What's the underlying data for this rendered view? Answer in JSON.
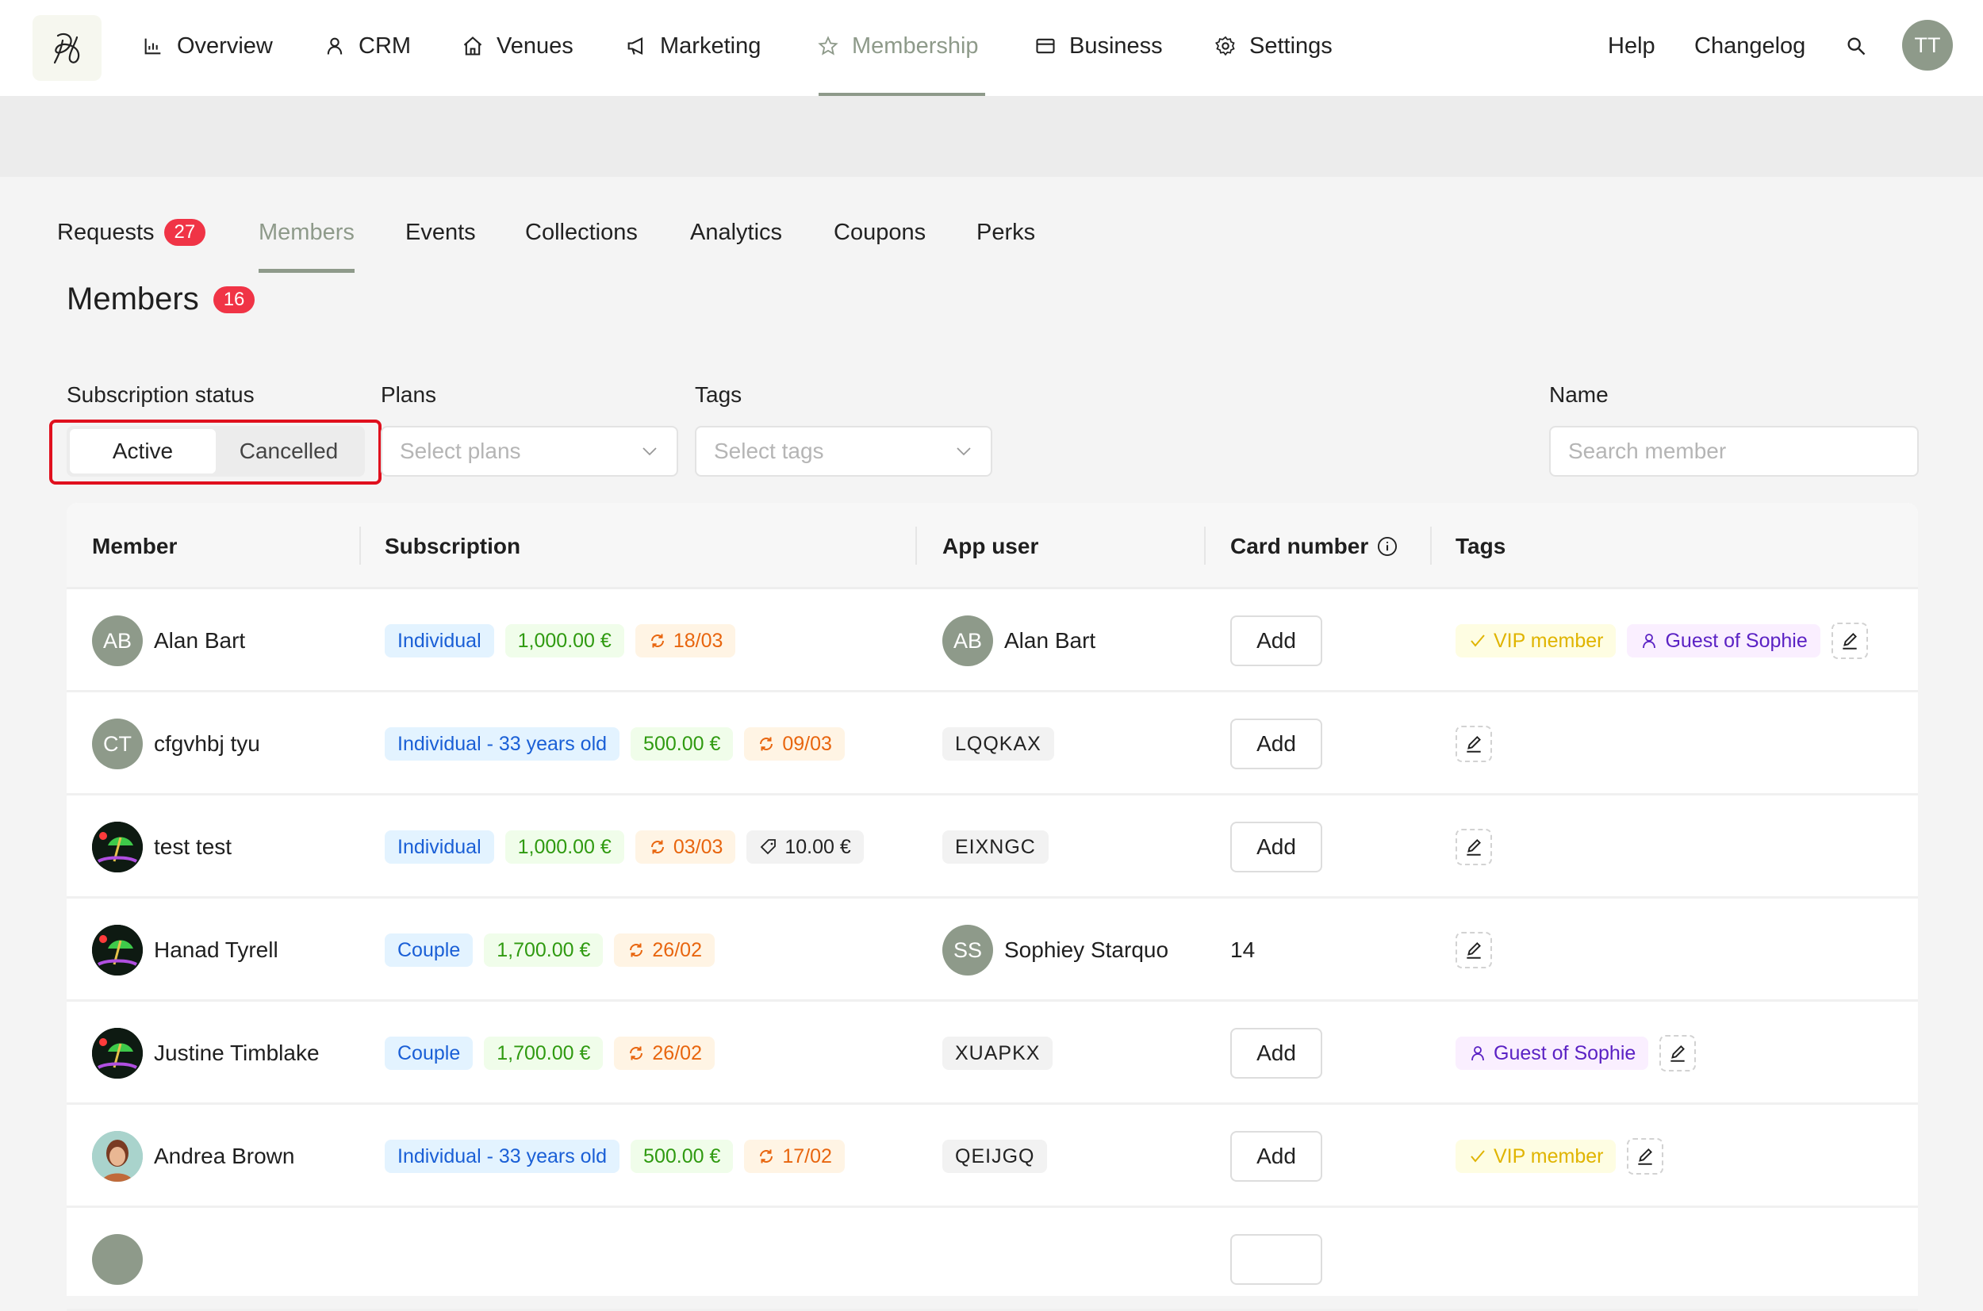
{
  "nav": {
    "items": [
      {
        "label": "Overview",
        "icon": "bar-chart-icon"
      },
      {
        "label": "CRM",
        "icon": "user-icon"
      },
      {
        "label": "Venues",
        "icon": "home-icon"
      },
      {
        "label": "Marketing",
        "icon": "megaphone-icon"
      },
      {
        "label": "Membership",
        "icon": "star-icon",
        "active": true
      },
      {
        "label": "Business",
        "icon": "card-icon"
      },
      {
        "label": "Settings",
        "icon": "gear-icon"
      }
    ],
    "help": "Help",
    "changelog": "Changelog",
    "avatar": "TT"
  },
  "subnav": {
    "items": [
      {
        "label": "Requests",
        "badge": "27"
      },
      {
        "label": "Members",
        "active": true
      },
      {
        "label": "Events"
      },
      {
        "label": "Collections"
      },
      {
        "label": "Analytics"
      },
      {
        "label": "Coupons"
      },
      {
        "label": "Perks"
      }
    ]
  },
  "page": {
    "title": "Members",
    "count": "16"
  },
  "filters": {
    "status_label": "Subscription status",
    "status_options": [
      "Active",
      "Cancelled"
    ],
    "status_selected": "Active",
    "plans_label": "Plans",
    "plans_placeholder": "Select plans",
    "tags_label": "Tags",
    "tags_placeholder": "Select tags",
    "name_label": "Name",
    "name_placeholder": "Search member"
  },
  "table": {
    "columns": [
      "Member",
      "Subscription",
      "App user",
      "Card number",
      "Tags"
    ],
    "add_label": "Add",
    "rows": [
      {
        "member": "Alan Bart",
        "initials": "AB",
        "avatar": "initials",
        "plan": "Individual",
        "price": "1,000.00 €",
        "renewal": "18/03",
        "app_user": {
          "name": "Alan Bart",
          "initials": "AB"
        },
        "card": null,
        "tags": [
          {
            "label": "VIP member",
            "kind": "vip"
          },
          {
            "label": "Guest of Sophie",
            "kind": "guest"
          }
        ]
      },
      {
        "member": "cfgvhbj tyu",
        "initials": "CT",
        "avatar": "initials",
        "plan": "Individual - 33 years old",
        "price": "500.00 €",
        "renewal": "09/03",
        "app_code": "LQQKAX",
        "card": null,
        "tags": []
      },
      {
        "member": "test test",
        "avatar": "beach",
        "plan": "Individual",
        "price": "1,000.00 €",
        "renewal": "03/03",
        "coupon": "10.00 €",
        "app_code": "EIXNGC",
        "card": null,
        "tags": []
      },
      {
        "member": "Hanad Tyrell",
        "avatar": "beach",
        "plan": "Couple",
        "price": "1,700.00 €",
        "renewal": "26/02",
        "app_user": {
          "name": "Sophiey Starquo",
          "initials": "SS"
        },
        "card": "14",
        "tags": []
      },
      {
        "member": "Justine Timblake",
        "avatar": "beach",
        "plan": "Couple",
        "price": "1,700.00 €",
        "renewal": "26/02",
        "app_code": "XUAPKX",
        "card": null,
        "tags": [
          {
            "label": "Guest of Sophie",
            "kind": "guest"
          }
        ]
      },
      {
        "member": "Andrea Brown",
        "avatar": "photo",
        "plan": "Individual - 33 years old",
        "price": "500.00 €",
        "renewal": "17/02",
        "app_code": "QEIJGQ",
        "card": null,
        "tags": [
          {
            "label": "VIP member",
            "kind": "vip"
          }
        ]
      }
    ]
  },
  "colors": {
    "accent": "#8e9a8a",
    "badge": "#f03446",
    "highlight": "#e0101e"
  }
}
